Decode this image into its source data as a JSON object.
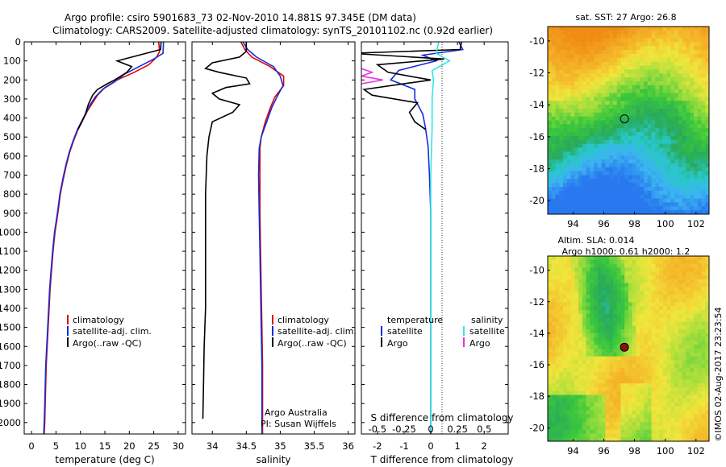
{
  "header": {
    "line1": "Argo profile: csiro 5901683_73 02-Nov-2010 14.881S 97.345E (DM data)",
    "line2": "Climatology: CARS2009. Satellite-adjusted climatology: synTS_20101102.nc (0.92d earlier)"
  },
  "colors": {
    "climatology": "#e00000",
    "satellite": "#1a2bd6",
    "argo": "#000000",
    "sat_salinity": "#33e6e6",
    "argo_salinity": "#e633e6"
  },
  "chart_data": [
    {
      "name": "temperature-profile",
      "type": "line",
      "xlabel": "temperature (deg C)",
      "xticks": [
        0,
        5,
        10,
        15,
        20,
        25,
        30
      ],
      "xlim": [
        -1.5,
        31.5
      ],
      "ylim": [
        2060,
        0
      ],
      "yticks": [
        0,
        100,
        200,
        300,
        400,
        500,
        600,
        700,
        800,
        900,
        1000,
        1100,
        1200,
        1300,
        1400,
        1500,
        1600,
        1700,
        1800,
        1900,
        2000
      ],
      "legend": [
        "climatology",
        "satellite-adj. clim.",
        "Argo(..raw -QC)"
      ],
      "series": [
        {
          "name": "climatology",
          "color": "#e00000",
          "points": [
            [
              26.0,
              0
            ],
            [
              26.2,
              50
            ],
            [
              25.6,
              80
            ],
            [
              24.0,
              120
            ],
            [
              21.0,
              160
            ],
            [
              17.5,
              200
            ],
            [
              15.0,
              240
            ],
            [
              13.5,
              280
            ],
            [
              12.5,
              320
            ],
            [
              11.5,
              360
            ],
            [
              10.7,
              400
            ],
            [
              9.5,
              460
            ],
            [
              8.6,
              520
            ],
            [
              7.8,
              580
            ],
            [
              7.1,
              650
            ],
            [
              6.5,
              720
            ],
            [
              5.9,
              800
            ],
            [
              5.5,
              880
            ],
            [
              5.1,
              950
            ],
            [
              4.8,
              1000
            ],
            [
              4.4,
              1100
            ],
            [
              4.1,
              1200
            ],
            [
              3.8,
              1300
            ],
            [
              3.6,
              1400
            ],
            [
              3.4,
              1500
            ],
            [
              3.2,
              1600
            ],
            [
              3.0,
              1700
            ],
            [
              2.9,
              1800
            ],
            [
              2.8,
              1900
            ],
            [
              2.7,
              2000
            ],
            [
              2.6,
              2060
            ]
          ]
        },
        {
          "name": "satellite-adj. clim.",
          "color": "#1a2bd6",
          "points": [
            [
              27.0,
              0
            ],
            [
              26.9,
              60
            ],
            [
              25.0,
              90
            ],
            [
              22.0,
              130
            ],
            [
              19.0,
              170
            ],
            [
              17.0,
              210
            ],
            [
              14.5,
              250
            ],
            [
              13.0,
              290
            ],
            [
              12.0,
              330
            ],
            [
              11.2,
              370
            ],
            [
              10.4,
              410
            ],
            [
              9.4,
              460
            ],
            [
              8.5,
              520
            ],
            [
              7.7,
              580
            ],
            [
              7.0,
              650
            ],
            [
              6.4,
              720
            ],
            [
              5.8,
              800
            ],
            [
              5.4,
              880
            ],
            [
              5.0,
              950
            ],
            [
              4.7,
              1000
            ],
            [
              4.3,
              1100
            ],
            [
              4.0,
              1200
            ],
            [
              3.7,
              1300
            ],
            [
              3.5,
              1400
            ],
            [
              3.3,
              1500
            ],
            [
              3.1,
              1600
            ],
            [
              2.9,
              1700
            ],
            [
              2.8,
              1800
            ],
            [
              2.7,
              1900
            ],
            [
              2.6,
              2000
            ],
            [
              2.5,
              2060
            ]
          ]
        },
        {
          "name": "Argo(..raw -QC)",
          "color": "#000000",
          "points": [
            [
              26.5,
              0
            ],
            [
              26.4,
              40
            ],
            [
              22.0,
              70
            ],
            [
              17.5,
              100
            ],
            [
              20.5,
              130
            ],
            [
              19.5,
              160
            ],
            [
              17.0,
              200
            ],
            [
              15.5,
              220
            ],
            [
              13.5,
              250
            ],
            [
              12.5,
              280
            ],
            [
              11.6,
              330
            ],
            [
              11.0,
              380
            ],
            [
              10.3,
              420
            ],
            [
              9.5,
              460
            ]
          ]
        }
      ]
    },
    {
      "name": "salinity-profile",
      "type": "line",
      "xlabel": "salinity",
      "xticks": [
        34,
        34.5,
        35,
        35.5,
        36
      ],
      "xlim": [
        33.7,
        36.1
      ],
      "ylim": [
        2060,
        0
      ],
      "legend": [
        "climatology",
        "satellite-adj. clim.",
        "Argo(..raw -QC)"
      ],
      "annotations": [
        "Argo Australia",
        "PI: Susan Wijffels"
      ],
      "series": [
        {
          "name": "climatology",
          "color": "#e00000",
          "points": [
            [
              34.42,
              0
            ],
            [
              34.48,
              40
            ],
            [
              34.58,
              80
            ],
            [
              34.85,
              130
            ],
            [
              35.05,
              180
            ],
            [
              35.05,
              230
            ],
            [
              34.92,
              290
            ],
            [
              34.85,
              350
            ],
            [
              34.78,
              420
            ],
            [
              34.72,
              500
            ],
            [
              34.7,
              560
            ],
            [
              34.7,
              700
            ],
            [
              34.7,
              900
            ],
            [
              34.71,
              1100
            ],
            [
              34.72,
              1300
            ],
            [
              34.73,
              1500
            ],
            [
              34.74,
              1700
            ],
            [
              34.74,
              1900
            ],
            [
              34.74,
              2060
            ]
          ]
        },
        {
          "name": "satellite-adj. clim.",
          "color": "#1a2bd6",
          "points": [
            [
              34.45,
              0
            ],
            [
              34.52,
              40
            ],
            [
              34.65,
              80
            ],
            [
              34.9,
              130
            ],
            [
              35.0,
              180
            ],
            [
              35.04,
              230
            ],
            [
              34.95,
              290
            ],
            [
              34.87,
              350
            ],
            [
              34.8,
              420
            ],
            [
              34.72,
              500
            ],
            [
              34.69,
              560
            ],
            [
              34.68,
              700
            ],
            [
              34.69,
              900
            ],
            [
              34.7,
              1100
            ],
            [
              34.71,
              1300
            ],
            [
              34.72,
              1500
            ],
            [
              34.73,
              1700
            ],
            [
              34.73,
              1900
            ],
            [
              34.73,
              2060
            ]
          ]
        },
        {
          "name": "Argo(..raw -QC)",
          "color": "#000000",
          "points": [
            [
              34.5,
              0
            ],
            [
              34.5,
              50
            ],
            [
              34.4,
              80
            ],
            [
              34.0,
              110
            ],
            [
              33.9,
              140
            ],
            [
              34.1,
              160
            ],
            [
              34.5,
              190
            ],
            [
              34.55,
              220
            ],
            [
              34.2,
              240
            ],
            [
              34.0,
              270
            ],
            [
              34.1,
              300
            ],
            [
              34.4,
              330
            ],
            [
              34.3,
              370
            ],
            [
              34.0,
              420
            ],
            [
              33.95,
              500
            ],
            [
              33.92,
              600
            ],
            [
              33.9,
              800
            ],
            [
              33.9,
              1000
            ],
            [
              33.9,
              1200
            ],
            [
              33.9,
              1400
            ],
            [
              33.88,
              1600
            ],
            [
              33.87,
              1800
            ],
            [
              33.86,
              1980
            ]
          ]
        }
      ]
    },
    {
      "name": "difference-profile",
      "type": "line",
      "xlabel": "T difference from climatology",
      "xlabel_top": "S difference from climatology",
      "xticks_T": [
        -2,
        -1,
        0,
        1,
        2
      ],
      "xticks_S": [
        -0.5,
        -0.25,
        0,
        0.25,
        0.5
      ],
      "xlim": [
        -2.6,
        2.9
      ],
      "ylim": [
        2060,
        0
      ],
      "legend_headers": [
        "temperature",
        "salinity"
      ],
      "legend": [
        "satellite",
        "Argo",
        "satellite",
        "Argo"
      ],
      "series": [
        {
          "name": "temperature satellite",
          "color": "#1a2bd6",
          "points": [
            [
              1.05,
              0
            ],
            [
              1.2,
              40
            ],
            [
              -0.3,
              70
            ],
            [
              0.2,
              100
            ],
            [
              -1.2,
              150
            ],
            [
              -1.5,
              200
            ],
            [
              -0.6,
              250
            ],
            [
              -0.6,
              300
            ],
            [
              -0.3,
              380
            ],
            [
              -0.2,
              450
            ],
            [
              -0.1,
              550
            ],
            [
              -0.05,
              700
            ],
            [
              0,
              900
            ],
            [
              0,
              1200
            ],
            [
              0,
              1600
            ],
            [
              0,
              2000
            ],
            [
              0,
              2060
            ]
          ]
        },
        {
          "name": "temperature Argo",
          "color": "#000000",
          "points": [
            [
              1.15,
              0
            ],
            [
              1.1,
              40
            ],
            [
              -3.0,
              60
            ],
            [
              0.5,
              90
            ],
            [
              -2.0,
              120
            ],
            [
              -1.6,
              160
            ],
            [
              0.0,
              200
            ],
            [
              -2.5,
              250
            ],
            [
              -2.2,
              280
            ],
            [
              -0.5,
              320
            ],
            [
              -0.8,
              370
            ],
            [
              -0.6,
              420
            ],
            [
              -0.2,
              460
            ]
          ]
        },
        {
          "name": "salinity satellite",
          "color": "#33e6e6",
          "points": [
            [
              0.3,
              0
            ],
            [
              0.2,
              60
            ],
            [
              0.7,
              100
            ],
            [
              0.05,
              150
            ],
            [
              0.1,
              200
            ],
            [
              0.05,
              300
            ],
            [
              0.05,
              450
            ],
            [
              0.0,
              700
            ],
            [
              0.0,
              1000
            ],
            [
              0.0,
              1400
            ],
            [
              0.0,
              1800
            ],
            [
              0.0,
              2060
            ]
          ]
        },
        {
          "name": "salinity Argo",
          "color": "#e633e6",
          "points": [
            [
              -2.6,
              140
            ],
            [
              -2.2,
              160
            ],
            [
              -2.4,
              170
            ],
            [
              -2.6,
              180
            ],
            [
              -1.8,
              200
            ],
            [
              -2.6,
              220
            ]
          ]
        }
      ]
    },
    {
      "name": "sst-map",
      "type": "heatmap",
      "title": "sat. SST: 27 Argo: 26.8",
      "xticks": [
        94,
        96,
        98,
        100,
        102
      ],
      "yticks": [
        -10,
        -12,
        -14,
        -16,
        -18,
        -20
      ],
      "xlim": [
        92.35,
        102.85
      ],
      "ylim": [
        -20.85,
        -9.1
      ],
      "marker": [
        97.345,
        -14.881
      ]
    },
    {
      "name": "sla-map",
      "type": "heatmap",
      "title": "Altim. SLA: 0.014",
      "subtitle": "Argo h1000: 0.61 h2000: 1.2",
      "xticks": [
        94,
        96,
        98,
        100,
        102
      ],
      "yticks": [
        -10,
        -12,
        -14,
        -16,
        -18,
        -20
      ],
      "xlim": [
        92.35,
        102.85
      ],
      "ylim": [
        -20.85,
        -9.1
      ],
      "marker": [
        97.345,
        -14.881
      ]
    }
  ],
  "credit": "©IMOS 02-Aug-2017 23:23:54"
}
